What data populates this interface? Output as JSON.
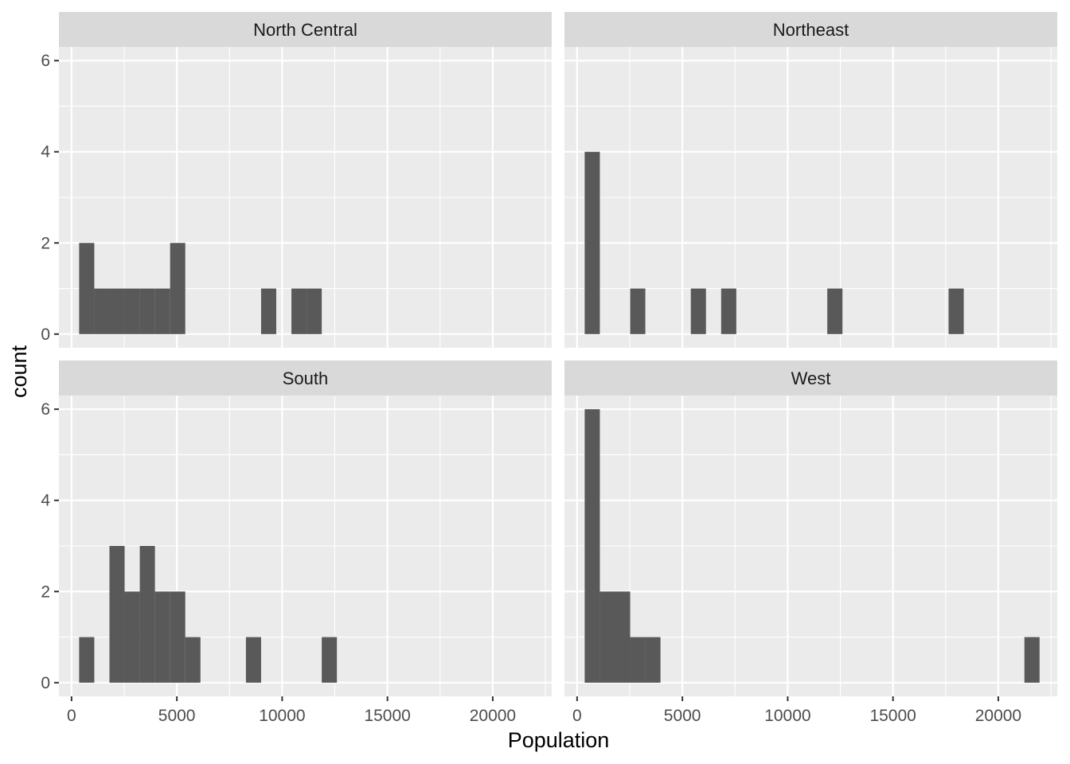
{
  "chart_data": {
    "type": "bar",
    "chart_kind": "faceted histogram",
    "xlabel": "Population",
    "ylabel": "count",
    "xlim": [
      -600,
      22800
    ],
    "ylim": [
      -0.3,
      6.3
    ],
    "x_ticks": [
      0,
      5000,
      10000,
      15000,
      20000
    ],
    "y_ticks": [
      0,
      2,
      4,
      6
    ],
    "bin_width": 720,
    "grid": true,
    "bar_color": "#595959",
    "panel_background": "#ebebeb",
    "strip_background": "#d9d9d9",
    "grid_color": "#ffffff",
    "facets": [
      {
        "label": "North Central",
        "bins": [
          {
            "x0": 360,
            "x1": 1080,
            "count": 2
          },
          {
            "x0": 1080,
            "x1": 1800,
            "count": 1
          },
          {
            "x0": 1800,
            "x1": 2520,
            "count": 1
          },
          {
            "x0": 2520,
            "x1": 3240,
            "count": 1
          },
          {
            "x0": 3240,
            "x1": 3960,
            "count": 1
          },
          {
            "x0": 3960,
            "x1": 4680,
            "count": 1
          },
          {
            "x0": 4680,
            "x1": 5400,
            "count": 2
          },
          {
            "x0": 9000,
            "x1": 9720,
            "count": 1
          },
          {
            "x0": 10440,
            "x1": 11160,
            "count": 1
          },
          {
            "x0": 11160,
            "x1": 11880,
            "count": 1
          }
        ]
      },
      {
        "label": "Northeast",
        "bins": [
          {
            "x0": 360,
            "x1": 1080,
            "count": 4
          },
          {
            "x0": 2520,
            "x1": 3240,
            "count": 1
          },
          {
            "x0": 5400,
            "x1": 6120,
            "count": 1
          },
          {
            "x0": 6840,
            "x1": 7560,
            "count": 1
          },
          {
            "x0": 11880,
            "x1": 12600,
            "count": 1
          },
          {
            "x0": 17640,
            "x1": 18360,
            "count": 1
          }
        ]
      },
      {
        "label": "South",
        "bins": [
          {
            "x0": 360,
            "x1": 1080,
            "count": 1
          },
          {
            "x0": 1800,
            "x1": 2520,
            "count": 3
          },
          {
            "x0": 2520,
            "x1": 3240,
            "count": 2
          },
          {
            "x0": 3240,
            "x1": 3960,
            "count": 3
          },
          {
            "x0": 3960,
            "x1": 4680,
            "count": 2
          },
          {
            "x0": 4680,
            "x1": 5400,
            "count": 2
          },
          {
            "x0": 5400,
            "x1": 6120,
            "count": 1
          },
          {
            "x0": 8280,
            "x1": 9000,
            "count": 1
          },
          {
            "x0": 11880,
            "x1": 12600,
            "count": 1
          }
        ]
      },
      {
        "label": "West",
        "bins": [
          {
            "x0": 360,
            "x1": 1080,
            "count": 6
          },
          {
            "x0": 1080,
            "x1": 1800,
            "count": 2
          },
          {
            "x0": 1800,
            "x1": 2520,
            "count": 2
          },
          {
            "x0": 2520,
            "x1": 3240,
            "count": 1
          },
          {
            "x0": 3240,
            "x1": 3960,
            "count": 1
          },
          {
            "x0": 21240,
            "x1": 21960,
            "count": 1
          }
        ]
      }
    ]
  }
}
